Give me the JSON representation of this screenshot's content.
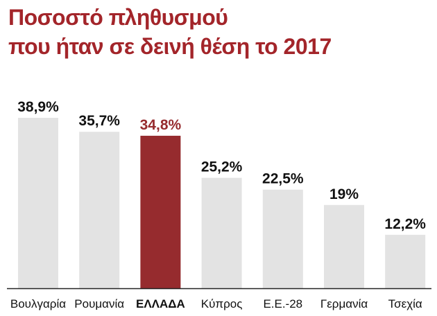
{
  "title": {
    "line1": "Ποσοστό πληθυσμού",
    "line2": "που ήταν σε δεινή θέση το 2017"
  },
  "colors": {
    "title": "#a3252a",
    "highlight": "#962b2e",
    "bar": "#e3e3e3",
    "text": "#111111",
    "axis": "#222222"
  },
  "chart_data": {
    "type": "bar",
    "title": "Ποσοστό πληθυσμού που ήταν σε δεινή θέση το 2017",
    "xlabel": "",
    "ylabel": "",
    "ylim": [
      0,
      38.9
    ],
    "grid": false,
    "legend": "none",
    "categories": [
      "Βουλγαρία",
      "Ρουμανία",
      "ΕΛΛΑΔΑ",
      "Κύπρος",
      "Ε.Ε.-28",
      "Γερμανία",
      "Τσεχία"
    ],
    "values": [
      38.9,
      35.7,
      34.8,
      25.2,
      22.5,
      19,
      12.2
    ],
    "value_labels": [
      "38,9%",
      "35,7%",
      "34,8%",
      "25,2%",
      "22,5%",
      "19%",
      "12,2%"
    ],
    "highlight_index": 2
  }
}
